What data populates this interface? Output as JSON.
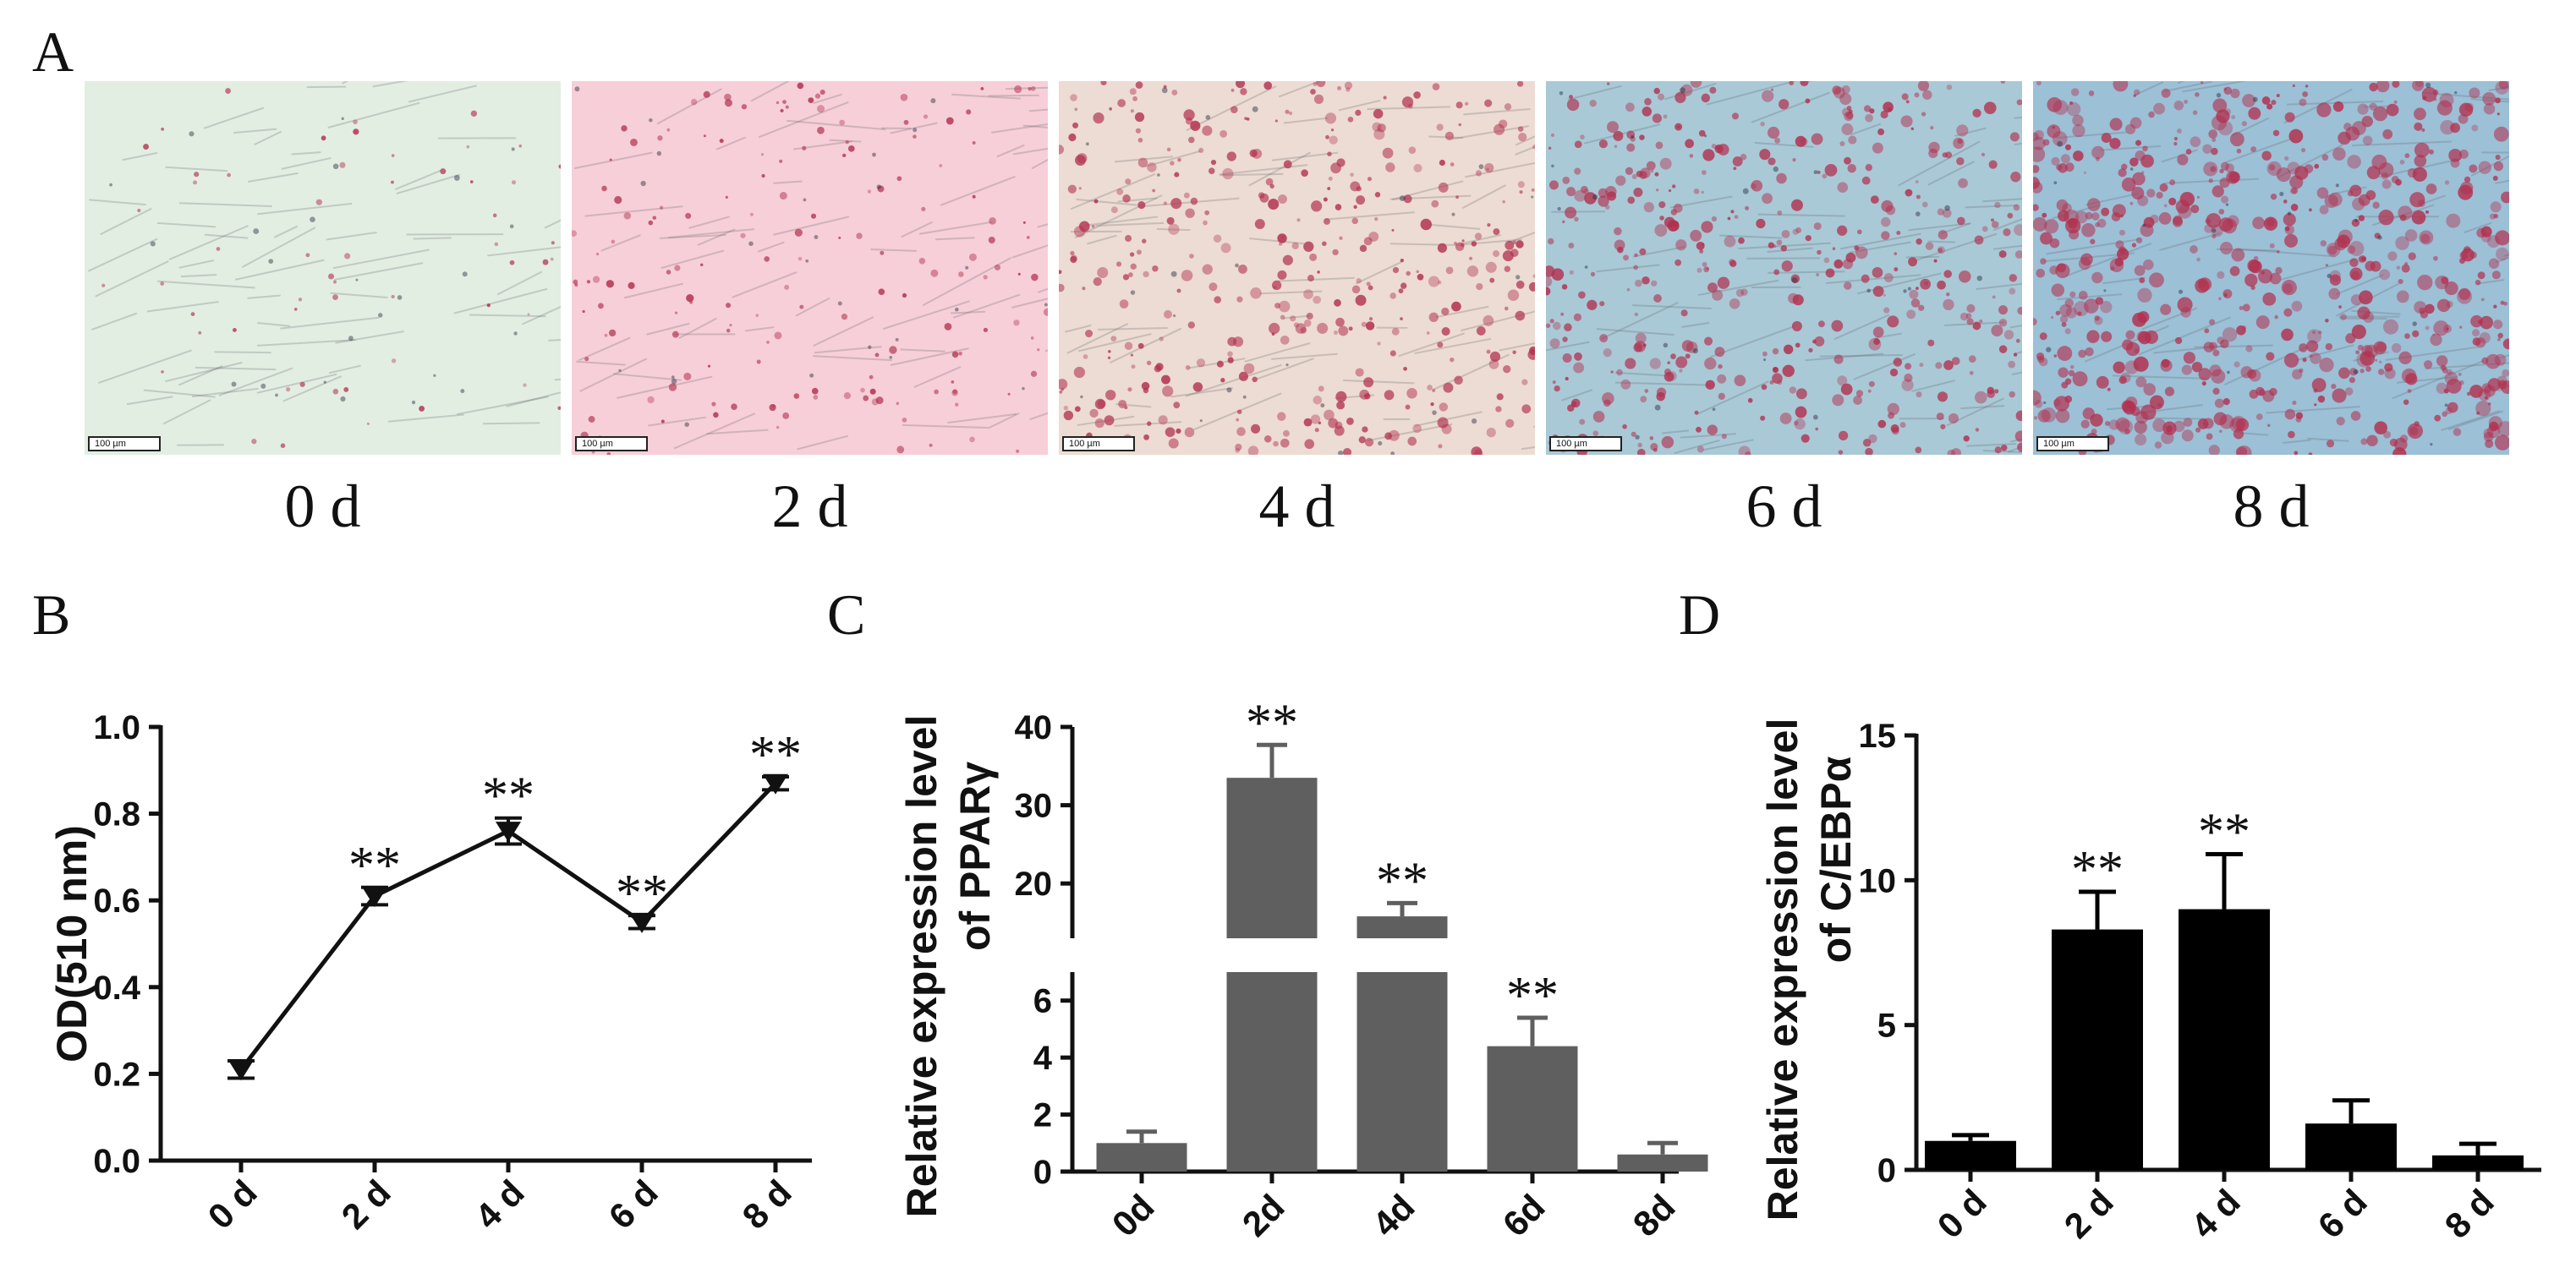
{
  "panels": {
    "a": "A",
    "b": "B",
    "c": "C",
    "d": "D"
  },
  "micrographs": [
    {
      "label": "0 d",
      "scale_bar": "100 µm",
      "stain_level": 0.05,
      "background": "#e3eee3"
    },
    {
      "label": "2 d",
      "scale_bar": "100 µm",
      "stain_level": 0.2,
      "background": "#f7cfd8"
    },
    {
      "label": "4 d",
      "scale_bar": "100 µm",
      "stain_level": 0.55,
      "background": "#ecdcd3"
    },
    {
      "label": "6 d",
      "scale_bar": "100 µm",
      "stain_level": 0.65,
      "background": "#a9c9d6"
    },
    {
      "label": "8 d",
      "scale_bar": "100 µm",
      "stain_level": 0.95,
      "background": "#9cc0d6"
    }
  ],
  "colors": {
    "line": "#111111",
    "bar_c": "#5f5f5f",
    "bar_d": "#000000",
    "stain": "#b2304e"
  },
  "chart_data": [
    {
      "id": "B",
      "type": "line",
      "title": "",
      "xlabel": "",
      "ylabel": "OD(510 nm)",
      "categories": [
        "0 d",
        "2 d",
        "4 d",
        "6 d",
        "8 d"
      ],
      "values": [
        0.21,
        0.61,
        0.76,
        0.55,
        0.87
      ],
      "errors": [
        0.02,
        0.02,
        0.03,
        0.015,
        0.015
      ],
      "annotations": [
        "",
        "**",
        "**",
        "**",
        "**"
      ],
      "ylim": [
        0.0,
        1.0
      ],
      "yticks": [
        "0.0",
        "0.2",
        "0.4",
        "0.6",
        "0.8",
        "1.0"
      ],
      "grid": false
    },
    {
      "id": "C",
      "type": "bar",
      "title": "",
      "xlabel": "",
      "ylabel_line1": "Relative expression level",
      "ylabel_line2": "of PPARγ",
      "categories": [
        "0d",
        "2d",
        "4d",
        "6d",
        "8d"
      ],
      "values": [
        1.0,
        33.5,
        15.8,
        4.4,
        0.6
      ],
      "errors": [
        0.4,
        4.2,
        1.7,
        1.0,
        0.4
      ],
      "annotations": [
        "",
        "**",
        "**",
        "**",
        ""
      ],
      "broken_axis": {
        "lower": [
          0,
          7
        ],
        "upper": [
          13,
          40
        ]
      },
      "yticks_lower": [
        "0",
        "2",
        "4",
        "6"
      ],
      "yticks_upper": [
        "20",
        "30",
        "40"
      ],
      "grid": false
    },
    {
      "id": "D",
      "type": "bar",
      "title": "",
      "xlabel": "",
      "ylabel_line1": "Relative expression level",
      "ylabel_line2": "of  C/EBPα",
      "categories": [
        "0 d",
        "2 d",
        "4 d",
        "6 d",
        "8 d"
      ],
      "values": [
        1.0,
        8.3,
        9.0,
        1.6,
        0.5
      ],
      "errors": [
        0.2,
        1.3,
        1.9,
        0.8,
        0.4
      ],
      "annotations": [
        "",
        "**",
        "**",
        "",
        ""
      ],
      "ylim": [
        0,
        15
      ],
      "yticks": [
        "0",
        "5",
        "10",
        "15"
      ],
      "grid": false
    }
  ]
}
